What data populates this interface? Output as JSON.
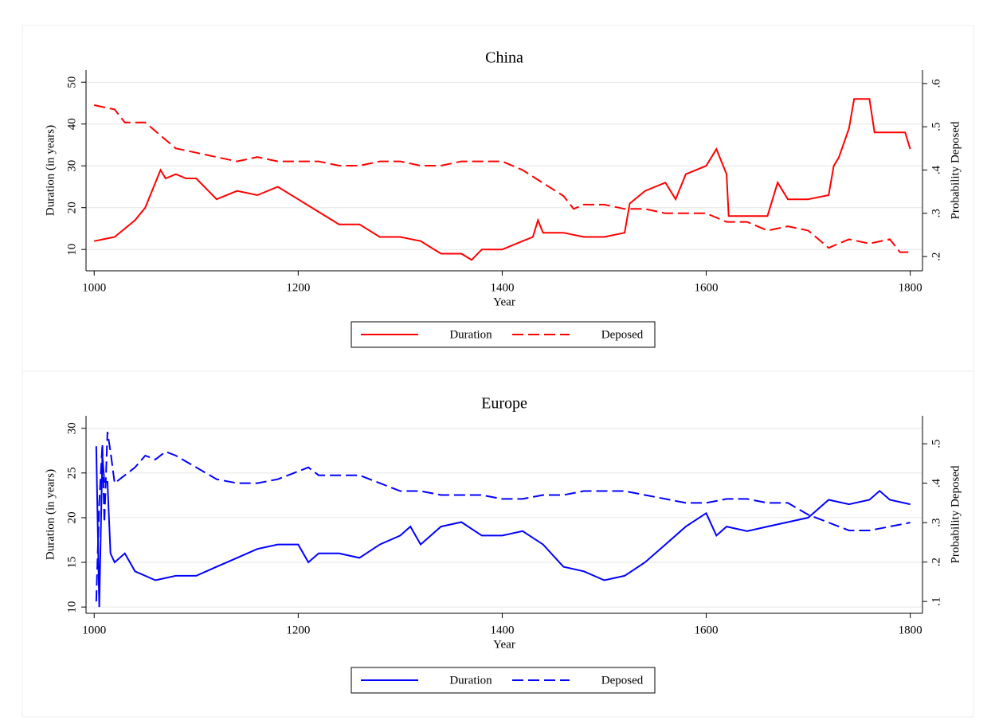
{
  "chart_data": [
    {
      "type": "line",
      "title": "China",
      "xlabel": "Year",
      "ylabel": "Duration (in years)",
      "y2label": "Probability Deposed",
      "xlim": [
        992,
        1812
      ],
      "xticks": [
        1000,
        1200,
        1400,
        1600,
        1800
      ],
      "ylim": [
        4.9,
        52.9
      ],
      "yticks": [
        10,
        20,
        30,
        40,
        50
      ],
      "y2lim": [
        0.167,
        0.631
      ],
      "y2ticks": [
        {
          "value": 0.2,
          "label": ".2"
        },
        {
          "value": 0.3,
          "label": ".3"
        },
        {
          "value": 0.4,
          "label": ".4"
        },
        {
          "value": 0.5,
          "label": ".5"
        },
        {
          "value": 0.6,
          "label": ".6"
        }
      ],
      "grid": true,
      "legend": "bottom",
      "series": [
        {
          "name": "Duration",
          "color": "#ff0000",
          "linestyle": "solid",
          "axis": "y",
          "x": [
            1000,
            1020,
            1040,
            1050,
            1060,
            1065,
            1070,
            1080,
            1090,
            1100,
            1120,
            1140,
            1160,
            1180,
            1200,
            1220,
            1240,
            1260,
            1280,
            1300,
            1320,
            1340,
            1360,
            1370,
            1380,
            1400,
            1420,
            1430,
            1435,
            1440,
            1460,
            1480,
            1500,
            1520,
            1525,
            1540,
            1560,
            1570,
            1580,
            1600,
            1610,
            1620,
            1622,
            1640,
            1660,
            1670,
            1680,
            1700,
            1720,
            1725,
            1730,
            1740,
            1745,
            1760,
            1765,
            1780,
            1795,
            1800
          ],
          "values": [
            12,
            13,
            17,
            20,
            26,
            29,
            27,
            28,
            27,
            27,
            22,
            24,
            23,
            25,
            22,
            19,
            16,
            16,
            13,
            13,
            12,
            9,
            9,
            7.5,
            10,
            10,
            12,
            13,
            17,
            14,
            14,
            13,
            13,
            14,
            21,
            24,
            26,
            22,
            28,
            30,
            34,
            28,
            18,
            18,
            18,
            26,
            22,
            22,
            23,
            30,
            32,
            39,
            46,
            46,
            38,
            38,
            38,
            34
          ]
        },
        {
          "name": "Deposed",
          "color": "#ff0000",
          "linestyle": "dashed",
          "axis": "y2",
          "x": [
            1000,
            1020,
            1030,
            1050,
            1060,
            1080,
            1100,
            1120,
            1140,
            1160,
            1180,
            1200,
            1220,
            1240,
            1260,
            1280,
            1300,
            1320,
            1340,
            1360,
            1380,
            1400,
            1420,
            1440,
            1460,
            1470,
            1480,
            1500,
            1520,
            1540,
            1560,
            1580,
            1600,
            1620,
            1640,
            1660,
            1680,
            1700,
            1720,
            1740,
            1760,
            1780,
            1790,
            1800
          ],
          "values": [
            0.55,
            0.54,
            0.51,
            0.51,
            0.49,
            0.45,
            0.44,
            0.43,
            0.42,
            0.43,
            0.42,
            0.42,
            0.42,
            0.41,
            0.41,
            0.42,
            0.42,
            0.41,
            0.41,
            0.42,
            0.42,
            0.42,
            0.4,
            0.37,
            0.34,
            0.31,
            0.32,
            0.32,
            0.31,
            0.31,
            0.3,
            0.3,
            0.3,
            0.28,
            0.28,
            0.26,
            0.27,
            0.26,
            0.22,
            0.24,
            0.23,
            0.24,
            0.21,
            0.21
          ]
        }
      ]
    },
    {
      "type": "line",
      "title": "Europe",
      "xlabel": "Year",
      "ylabel": "Duration (in years)",
      "y2label": "Probability Deposed",
      "xlim": [
        992,
        1812
      ],
      "xticks": [
        1000,
        1200,
        1400,
        1600,
        1800
      ],
      "ylim": [
        9.3,
        31.4
      ],
      "yticks": [
        10,
        15,
        20,
        25,
        30
      ],
      "y2lim": [
        0.07,
        0.571
      ],
      "y2ticks": [
        {
          "value": 0.1,
          "label": ".1"
        },
        {
          "value": 0.2,
          "label": ".2"
        },
        {
          "value": 0.3,
          "label": ".3"
        },
        {
          "value": 0.4,
          "label": ".4"
        },
        {
          "value": 0.5,
          "label": ".5"
        }
      ],
      "grid": true,
      "legend": "bottom",
      "series": [
        {
          "name": "Duration",
          "color": "#0000ff",
          "linestyle": "solid",
          "axis": "y",
          "x": [
            1002,
            1005,
            1008,
            1010,
            1013,
            1016,
            1020,
            1030,
            1040,
            1060,
            1080,
            1100,
            1120,
            1140,
            1160,
            1180,
            1200,
            1210,
            1220,
            1240,
            1260,
            1280,
            1300,
            1310,
            1320,
            1340,
            1360,
            1380,
            1400,
            1420,
            1440,
            1460,
            1480,
            1500,
            1520,
            1540,
            1560,
            1580,
            1600,
            1610,
            1620,
            1640,
            1660,
            1680,
            1700,
            1720,
            1740,
            1760,
            1770,
            1780,
            1800
          ],
          "values": [
            28,
            10,
            27,
            24,
            24,
            16,
            15,
            16,
            14,
            13,
            13.5,
            13.5,
            14.5,
            15.5,
            16.5,
            17,
            17,
            15,
            16,
            16,
            15.5,
            17,
            18,
            19,
            17,
            19,
            19.5,
            18,
            18,
            18.5,
            17,
            14.5,
            14,
            13,
            13.5,
            15,
            17,
            19,
            20.5,
            18,
            19,
            18.5,
            19,
            19.5,
            20,
            22,
            21.5,
            22,
            23,
            22,
            21.5
          ]
        },
        {
          "name": "Deposed",
          "color": "#0000ff",
          "linestyle": "dashed",
          "axis": "y2",
          "x": [
            1002,
            1005,
            1008,
            1010,
            1013,
            1016,
            1020,
            1030,
            1040,
            1050,
            1060,
            1070,
            1080,
            1100,
            1120,
            1140,
            1160,
            1180,
            1200,
            1210,
            1220,
            1240,
            1260,
            1280,
            1300,
            1320,
            1340,
            1360,
            1380,
            1400,
            1420,
            1440,
            1460,
            1480,
            1500,
            1520,
            1540,
            1560,
            1580,
            1600,
            1620,
            1640,
            1660,
            1680,
            1700,
            1720,
            1740,
            1760,
            1780,
            1800
          ],
          "values": [
            0.1,
            0.35,
            0.5,
            0.3,
            0.53,
            0.48,
            0.4,
            0.42,
            0.44,
            0.47,
            0.46,
            0.48,
            0.47,
            0.44,
            0.41,
            0.4,
            0.4,
            0.41,
            0.43,
            0.44,
            0.42,
            0.42,
            0.42,
            0.4,
            0.38,
            0.38,
            0.37,
            0.37,
            0.37,
            0.36,
            0.36,
            0.37,
            0.37,
            0.38,
            0.38,
            0.38,
            0.37,
            0.36,
            0.35,
            0.35,
            0.36,
            0.36,
            0.35,
            0.35,
            0.32,
            0.3,
            0.28,
            0.28,
            0.29,
            0.3
          ]
        }
      ]
    }
  ]
}
